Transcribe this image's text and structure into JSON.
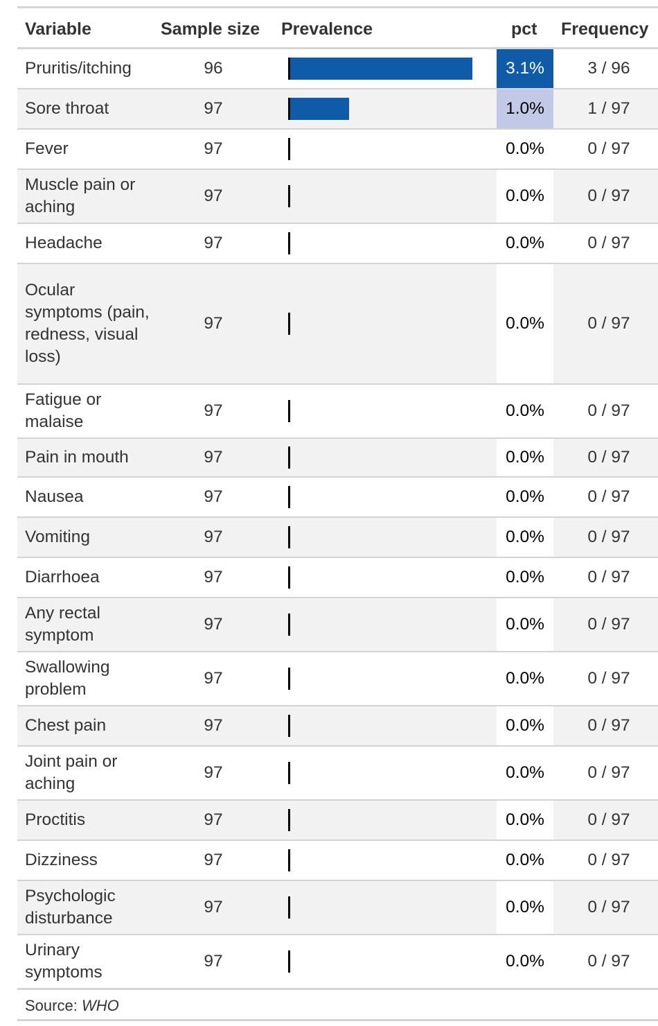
{
  "table": {
    "headers": {
      "variable": "Variable",
      "sample_size": "Sample size",
      "prevalence": "Prevalence",
      "pct": "pct",
      "frequency": "Frequency"
    },
    "source_label": "Source: ",
    "source_name": "WHO",
    "colors": {
      "bar": "#0f5ba8",
      "pct_high": "#0f5ba8",
      "pct_mid": "#c2c9e6",
      "stripe": "#f2f2f2",
      "rule": "#d3d3d3"
    }
  },
  "chart_data": {
    "type": "table",
    "columns": [
      "Variable",
      "Sample size",
      "Prevalence",
      "pct",
      "Frequency"
    ],
    "rows": [
      {
        "variable": "Pruritis/itching",
        "n": 96,
        "pct": 3.1,
        "pct_label": "3.1%",
        "freq": "3 / 96"
      },
      {
        "variable": "Sore throat",
        "n": 97,
        "pct": 1.0,
        "pct_label": "1.0%",
        "freq": "1 / 97"
      },
      {
        "variable": "Fever",
        "n": 97,
        "pct": 0.0,
        "pct_label": "0.0%",
        "freq": "0 / 97"
      },
      {
        "variable": "Muscle pain or aching",
        "n": 97,
        "pct": 0.0,
        "pct_label": "0.0%",
        "freq": "0 / 97"
      },
      {
        "variable": "Headache",
        "n": 97,
        "pct": 0.0,
        "pct_label": "0.0%",
        "freq": "0 / 97"
      },
      {
        "variable": "Ocular symptoms (pain, redness, visual loss)",
        "n": 97,
        "pct": 0.0,
        "pct_label": "0.0%",
        "freq": "0 / 97"
      },
      {
        "variable": "Fatigue or malaise",
        "n": 97,
        "pct": 0.0,
        "pct_label": "0.0%",
        "freq": "0 / 97"
      },
      {
        "variable": "Pain in mouth",
        "n": 97,
        "pct": 0.0,
        "pct_label": "0.0%",
        "freq": "0 / 97"
      },
      {
        "variable": "Nausea",
        "n": 97,
        "pct": 0.0,
        "pct_label": "0.0%",
        "freq": "0 / 97"
      },
      {
        "variable": "Vomiting",
        "n": 97,
        "pct": 0.0,
        "pct_label": "0.0%",
        "freq": "0 / 97"
      },
      {
        "variable": "Diarrhoea",
        "n": 97,
        "pct": 0.0,
        "pct_label": "0.0%",
        "freq": "0 / 97"
      },
      {
        "variable": "Any rectal symptom",
        "n": 97,
        "pct": 0.0,
        "pct_label": "0.0%",
        "freq": "0 / 97"
      },
      {
        "variable": "Swallowing problem",
        "n": 97,
        "pct": 0.0,
        "pct_label": "0.0%",
        "freq": "0 / 97"
      },
      {
        "variable": "Chest pain",
        "n": 97,
        "pct": 0.0,
        "pct_label": "0.0%",
        "freq": "0 / 97"
      },
      {
        "variable": "Joint pain or aching",
        "n": 97,
        "pct": 0.0,
        "pct_label": "0.0%",
        "freq": "0 / 97"
      },
      {
        "variable": "Proctitis",
        "n": 97,
        "pct": 0.0,
        "pct_label": "0.0%",
        "freq": "0 / 97"
      },
      {
        "variable": "Dizziness",
        "n": 97,
        "pct": 0.0,
        "pct_label": "0.0%",
        "freq": "0 / 97"
      },
      {
        "variable": "Psychologic disturbance",
        "n": 97,
        "pct": 0.0,
        "pct_label": "0.0%",
        "freq": "0 / 97"
      },
      {
        "variable": "Urinary symptoms",
        "n": 97,
        "pct": 0.0,
        "pct_label": "0.0%",
        "freq": "0 / 97"
      }
    ]
  }
}
